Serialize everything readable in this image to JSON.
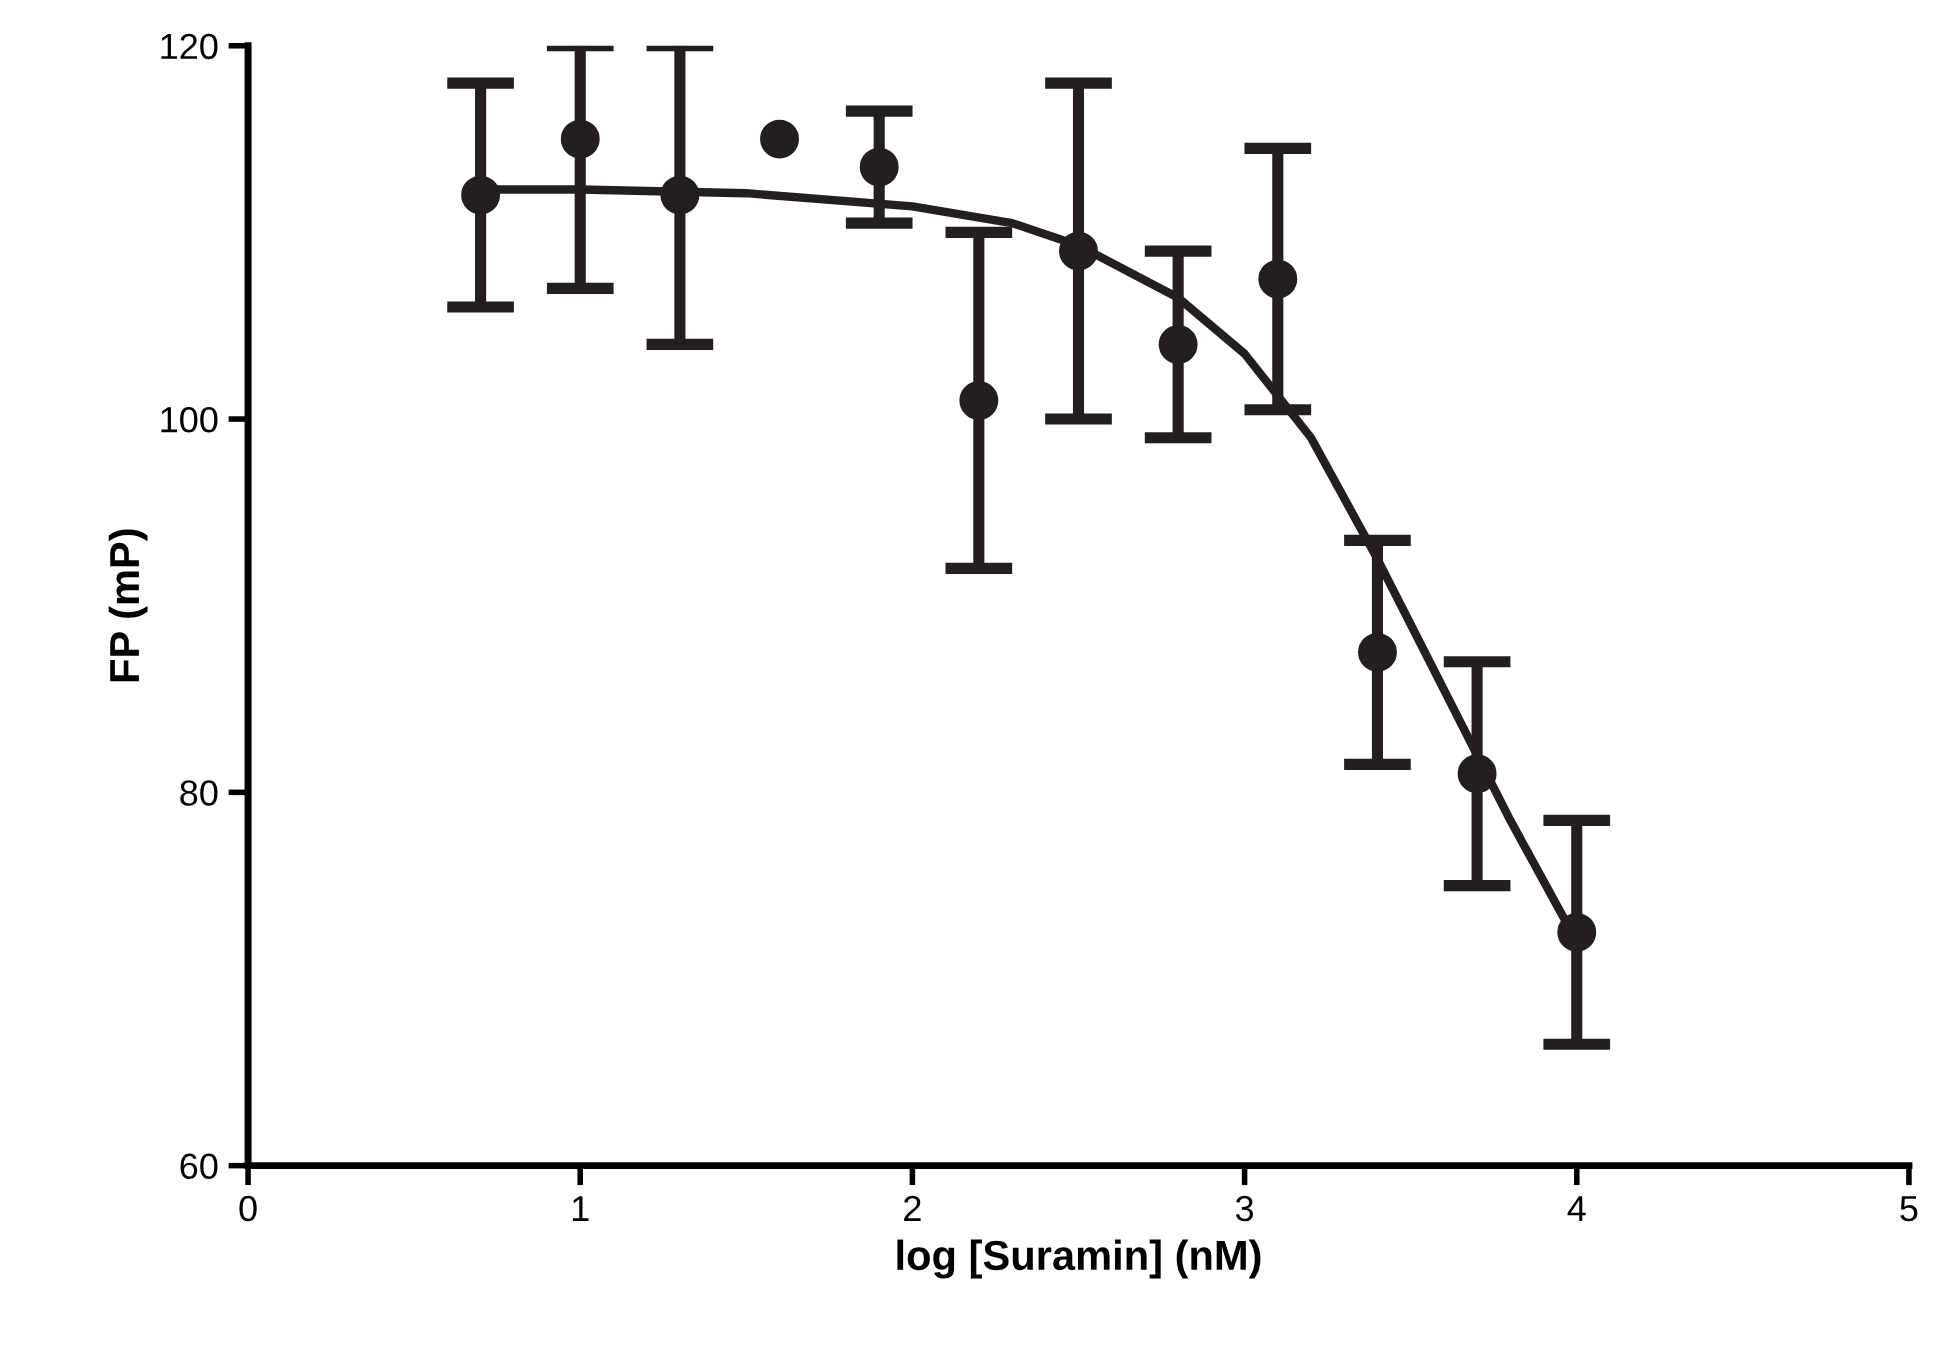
{
  "chart_data": {
    "type": "scatter",
    "xlabel": "log [Suramin] (nM)",
    "ylabel": "FP (mP)",
    "xlim": [
      0,
      5
    ],
    "xticks": [
      0,
      1,
      2,
      3,
      4,
      5
    ],
    "ylim": [
      60,
      120
    ],
    "yticks": [
      60,
      80,
      100,
      120
    ],
    "grid": false,
    "series": [
      {
        "color": "#231f20",
        "marker": "circle",
        "x": [
          0.7,
          1.0,
          1.3,
          1.6,
          1.9,
          2.2,
          2.5,
          2.8,
          3.1,
          3.4,
          3.7,
          4.0
        ],
        "values": [
          112,
          115,
          112,
          115,
          113.5,
          101,
          109,
          104,
          107.5,
          87.5,
          81,
          72.5
        ],
        "errors": [
          [
            106,
            118
          ],
          [
            107,
            120
          ],
          [
            104,
            120
          ],
          null,
          [
            110.5,
            116.5
          ],
          [
            92,
            110
          ],
          [
            100,
            118
          ],
          [
            99,
            109
          ],
          [
            100.5,
            114.5
          ],
          [
            81.5,
            93.5
          ],
          [
            75,
            87
          ],
          [
            66.5,
            78.5
          ]
        ]
      },
      {
        "type": "line",
        "color": "#231f20",
        "line_style": "solid",
        "marker": "none",
        "x": [
          0.7,
          1.0,
          1.5,
          2.0,
          2.3,
          2.5,
          2.8,
          3.0,
          3.2,
          3.4,
          3.6,
          3.8,
          4.0
        ],
        "values": [
          112.3,
          112.3,
          112.1,
          111.4,
          110.5,
          109.3,
          106.5,
          103.5,
          99,
          92.5,
          85.5,
          78.5,
          72
        ]
      }
    ]
  }
}
